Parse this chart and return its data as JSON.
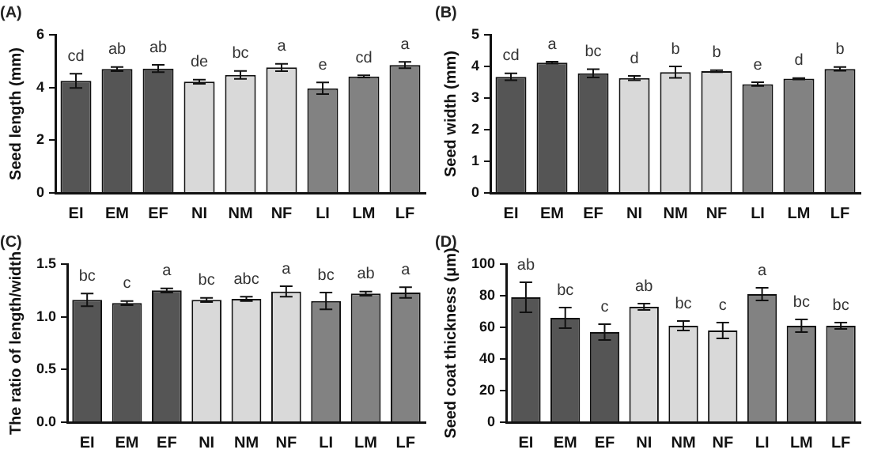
{
  "chart_data": [
    {
      "type": "bar",
      "title": "(A)",
      "ylabel": "Seed length (mm)",
      "categories": [
        "EI",
        "EM",
        "EF",
        "NI",
        "NM",
        "NF",
        "LI",
        "LM",
        "LF"
      ],
      "values": [
        4.25,
        4.7,
        4.72,
        4.22,
        4.48,
        4.76,
        3.97,
        4.42,
        4.85
      ],
      "errors": [
        0.27,
        0.08,
        0.14,
        0.08,
        0.15,
        0.14,
        0.22,
        0.04,
        0.12
      ],
      "value_labels": [
        "cd",
        "ab",
        "ab",
        "de",
        "bc",
        "a",
        "e",
        "cd",
        "a"
      ],
      "colors": [
        "#555555",
        "#555555",
        "#555555",
        "#d9d9d9",
        "#d9d9d9",
        "#d9d9d9",
        "#828282",
        "#828282",
        "#828282"
      ],
      "ylim": [
        0,
        6
      ],
      "yticks": [
        0,
        2,
        4,
        6
      ],
      "grid": false,
      "legend": false
    },
    {
      "type": "bar",
      "title": "(B)",
      "ylabel": "Seed width (mm)",
      "categories": [
        "EI",
        "EM",
        "EF",
        "NI",
        "NM",
        "NF",
        "LI",
        "LM",
        "LF"
      ],
      "values": [
        3.67,
        4.12,
        3.78,
        3.63,
        3.82,
        3.85,
        3.44,
        3.61,
        3.92
      ],
      "errors": [
        0.11,
        0.03,
        0.13,
        0.07,
        0.18,
        0.03,
        0.06,
        0.02,
        0.06
      ],
      "value_labels": [
        "cd",
        "a",
        "bc",
        "d",
        "b",
        "b",
        "e",
        "d",
        "b"
      ],
      "colors": [
        "#555555",
        "#555555",
        "#555555",
        "#d9d9d9",
        "#d9d9d9",
        "#d9d9d9",
        "#828282",
        "#828282",
        "#828282"
      ],
      "ylim": [
        0,
        5
      ],
      "yticks": [
        0,
        1,
        2,
        3,
        4,
        5
      ],
      "grid": false,
      "legend": false
    },
    {
      "type": "bar",
      "title": "(C)",
      "ylabel": "The ratio of length/width",
      "categories": [
        "EI",
        "EM",
        "EF",
        "NI",
        "NM",
        "NF",
        "LI",
        "LM",
        "LF"
      ],
      "values": [
        1.16,
        1.13,
        1.25,
        1.16,
        1.17,
        1.24,
        1.15,
        1.22,
        1.23
      ],
      "errors": [
        0.06,
        0.02,
        0.02,
        0.02,
        0.02,
        0.05,
        0.08,
        0.02,
        0.05
      ],
      "value_labels": [
        "bc",
        "c",
        "a",
        "bc",
        "abc",
        "a",
        "bc",
        "ab",
        "a"
      ],
      "colors": [
        "#555555",
        "#555555",
        "#555555",
        "#d9d9d9",
        "#d9d9d9",
        "#d9d9d9",
        "#828282",
        "#828282",
        "#828282"
      ],
      "ylim": [
        0,
        1.5
      ],
      "yticks": [
        {
          "value": 0,
          "label": "0.0"
        },
        {
          "value": 0.5,
          "label": "0.5"
        },
        {
          "value": 1,
          "label": "1.0"
        },
        {
          "value": 1.5,
          "label": "1.5"
        }
      ],
      "grid": false,
      "legend": false
    },
    {
      "type": "bar",
      "title": "(D)",
      "ylabel": "Seed coat thickness (μm)",
      "categories": [
        "EI",
        "EM",
        "EF",
        "NI",
        "NM",
        "NF",
        "LI",
        "LM",
        "LF"
      ],
      "values": [
        79,
        66,
        57,
        73,
        61,
        58,
        81,
        61,
        61
      ],
      "errors": [
        9.5,
        6.5,
        5,
        2,
        3,
        5,
        4,
        4,
        2
      ],
      "value_labels": [
        "ab",
        "bc",
        "c",
        "ab",
        "bc",
        "c",
        "a",
        "bc",
        "bc"
      ],
      "colors": [
        "#555555",
        "#555555",
        "#555555",
        "#d9d9d9",
        "#d9d9d9",
        "#d9d9d9",
        "#828282",
        "#828282",
        "#828282"
      ],
      "ylim": [
        0,
        100
      ],
      "yticks": [
        0,
        20,
        40,
        60,
        80,
        100
      ],
      "grid": false,
      "legend": false
    }
  ]
}
